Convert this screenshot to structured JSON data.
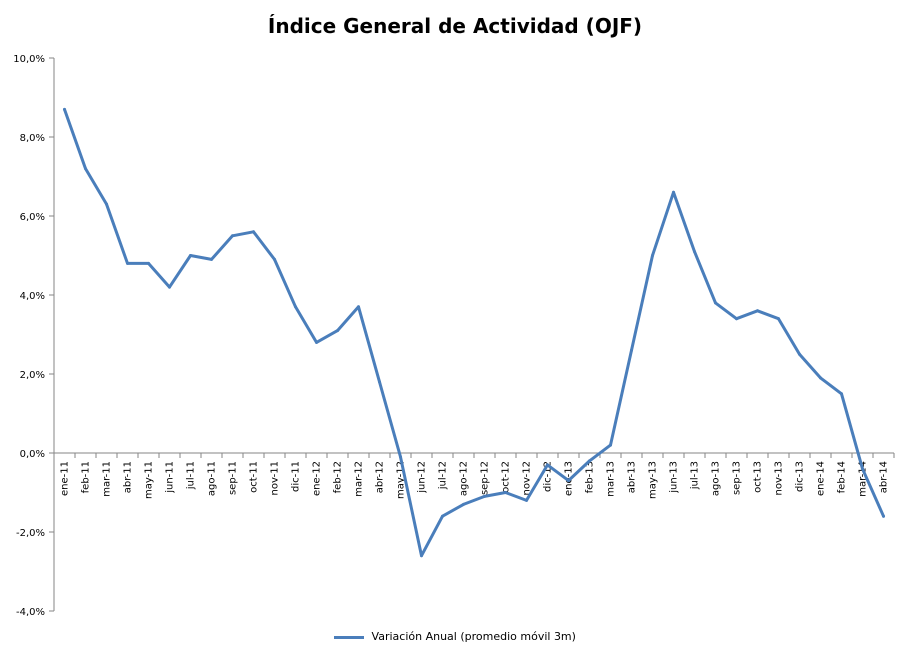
{
  "chart_data": {
    "type": "line",
    "title": "Índice General de Actividad (OJF)",
    "xlabel": "",
    "ylabel": "",
    "ylim": [
      -4,
      10
    ],
    "yticks": [
      -4,
      -2,
      0,
      2,
      4,
      6,
      8,
      10
    ],
    "ytick_labels": [
      "-4,0%",
      "-2,0%",
      "0,0%",
      "2,0%",
      "4,0%",
      "6,0%",
      "8,0%",
      "10,0%"
    ],
    "grid": false,
    "legend_position": "bottom",
    "categories": [
      "ene-11",
      "feb-11",
      "mar-11",
      "abr-11",
      "may-11",
      "jun-11",
      "jul-11",
      "ago-11",
      "sep-11",
      "oct-11",
      "nov-11",
      "dic-11",
      "ene-12",
      "feb-12",
      "mar-12",
      "abr-12",
      "may-12",
      "jun-12",
      "jul-12",
      "ago-12",
      "sep-12",
      "oct-12",
      "nov-12",
      "dic-12",
      "ene-13",
      "feb-13",
      "mar-13",
      "abr-13",
      "may-13",
      "jun-13",
      "jul-13",
      "ago-13",
      "sep-13",
      "oct-13",
      "nov-13",
      "dic-13",
      "ene-14",
      "feb-14",
      "mar-14",
      "abr-14"
    ],
    "series": [
      {
        "name": "Variación Anual (promedio móvil 3m)",
        "color": "#4A7EBB",
        "values": [
          8.7,
          7.2,
          6.3,
          4.8,
          4.8,
          4.2,
          5.0,
          4.9,
          5.5,
          5.6,
          4.9,
          3.7,
          2.8,
          3.1,
          3.7,
          1.8,
          -0.1,
          -2.6,
          -1.6,
          -1.3,
          -1.1,
          -1.0,
          -1.2,
          -0.3,
          -0.7,
          -0.2,
          0.2,
          2.6,
          5.0,
          6.6,
          5.1,
          3.8,
          3.4,
          3.6,
          3.4,
          2.5,
          1.9,
          1.5,
          -0.4,
          -1.6
        ]
      }
    ]
  }
}
